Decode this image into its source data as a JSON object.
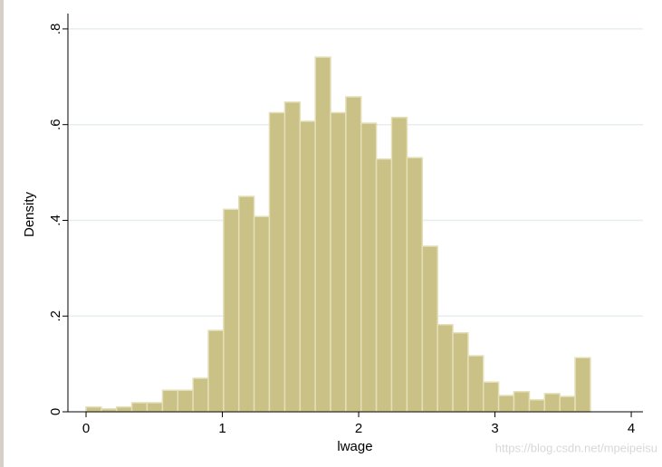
{
  "chart_data": {
    "type": "histogram",
    "x_label": "lwage",
    "y_label": "Density",
    "bins": [
      0,
      0.112,
      0.224,
      0.336,
      0.448,
      0.561,
      0.673,
      0.785,
      0.897,
      1.009,
      1.121,
      1.233,
      1.345,
      1.458,
      1.57,
      1.682,
      1.794,
      1.906,
      2.018,
      2.13,
      2.242,
      2.355,
      2.467,
      2.579,
      2.691,
      2.803,
      2.915,
      3.027,
      3.139,
      3.252,
      3.364,
      3.476,
      3.588,
      3.7
    ],
    "values": [
      0.01,
      0.006,
      0.01,
      0.019,
      0.019,
      0.045,
      0.045,
      0.07,
      0.17,
      0.423,
      0.45,
      0.408,
      0.625,
      0.647,
      0.607,
      0.741,
      0.625,
      0.658,
      0.603,
      0.528,
      0.615,
      0.531,
      0.346,
      0.182,
      0.165,
      0.117,
      0.062,
      0.034,
      0.042,
      0.025,
      0.038,
      0.032,
      0.113
    ],
    "color": "#c9c185",
    "xlim": [
      -0.133,
      4.086
    ],
    "ylim": [
      0,
      0.832
    ],
    "xticks": [
      0,
      1,
      2,
      3,
      4
    ],
    "yticks": [
      0,
      {
        "value": 0.2,
        "label": ".2"
      },
      {
        "value": 0.4,
        "label": ".4"
      },
      {
        "value": 0.6,
        "label": ".6"
      },
      {
        "value": 0.8,
        "label": ".8"
      }
    ],
    "grid": true,
    "watermark": "https://blog.csdn.net/mpeipeisu"
  }
}
